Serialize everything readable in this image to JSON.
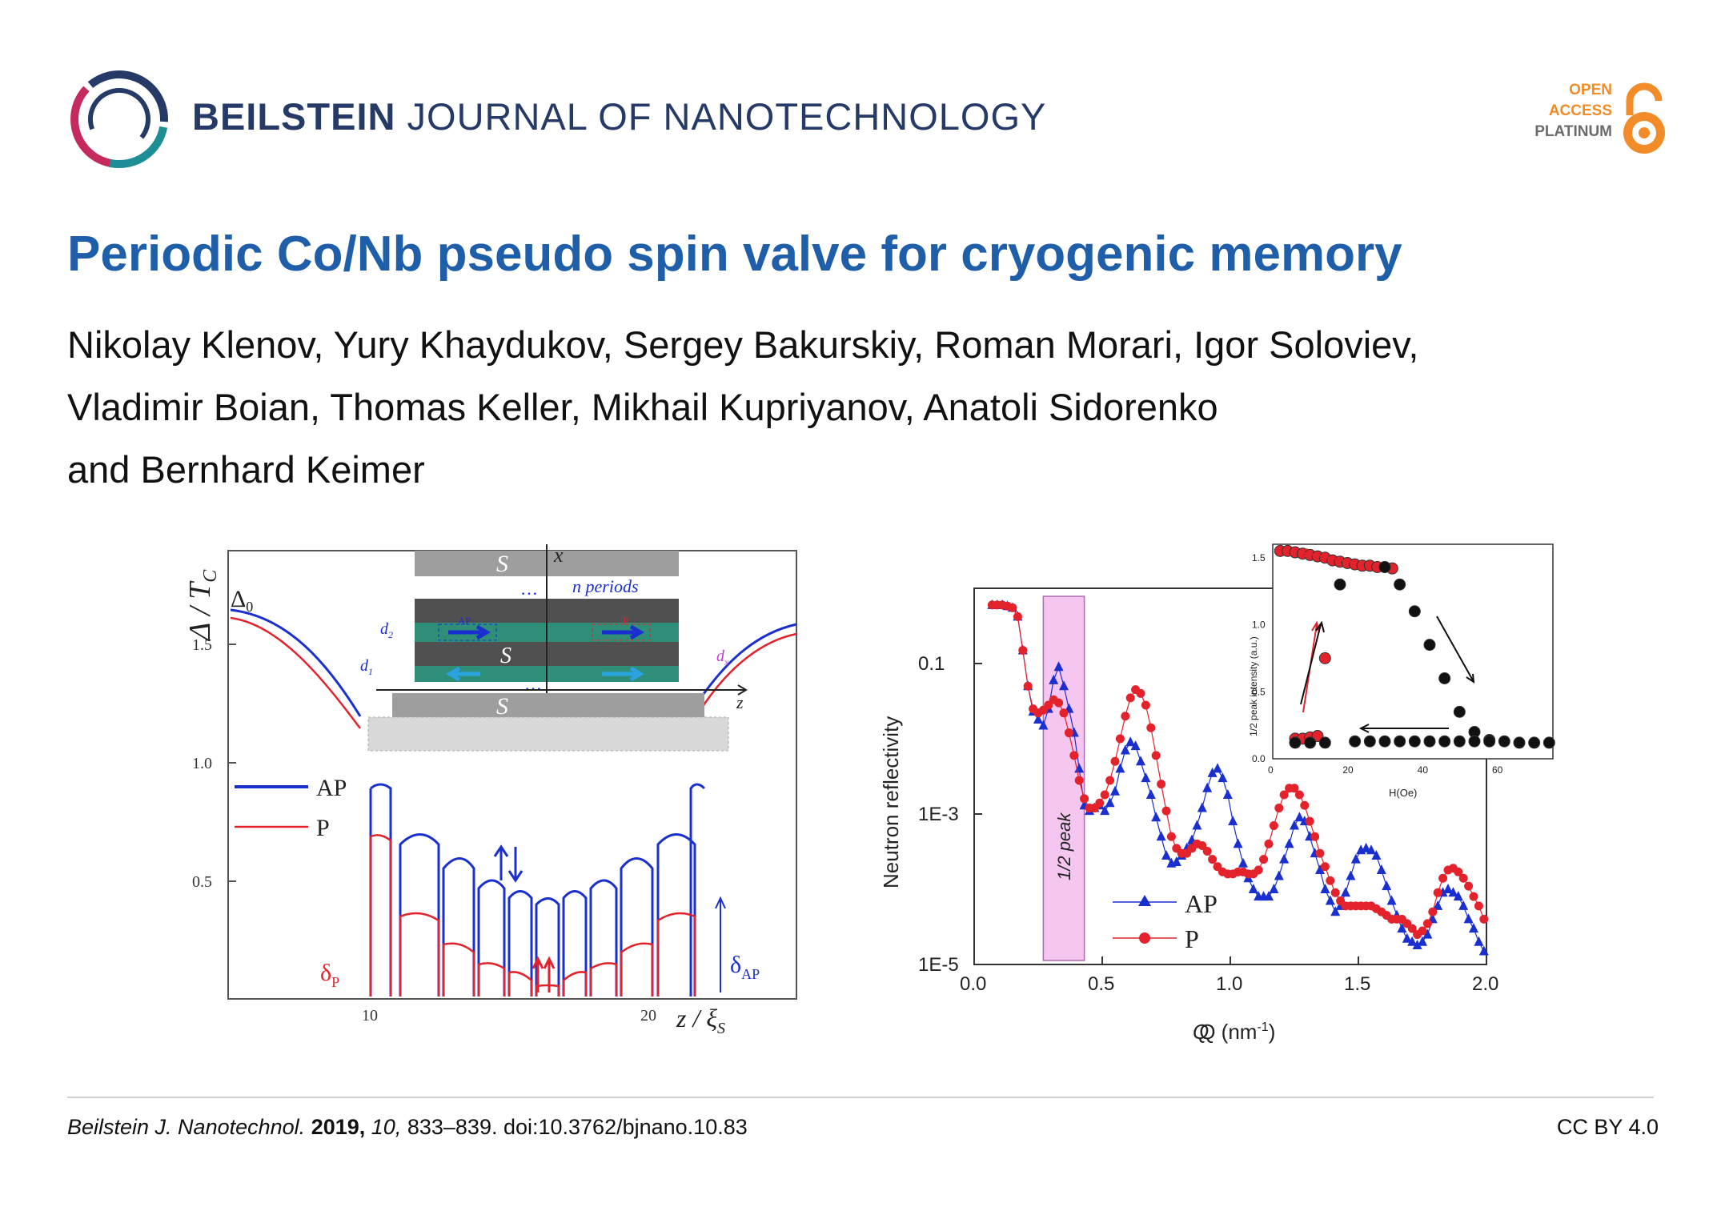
{
  "header": {
    "journal_bold": "BEILSTEIN",
    "journal_rest": "JOURNAL OF NANOTECHNOLOGY",
    "oa_line1": "OPEN",
    "oa_line2": "ACCESS",
    "oa_line3": "PLATINUM",
    "colors": {
      "journal": "#263a68",
      "title": "#1f5ea8",
      "oa_orange": "#f28c28"
    }
  },
  "article": {
    "title": "Periodic Co/Nb pseudo spin valve for cryogenic memory",
    "authors_line1": "Nikolay Klenov, Yury Khaydukov, Sergey Bakurskiy, Roman Morari, Igor Soloviev,",
    "authors_line2": "Vladimir Boian, Thomas Keller, Mikhail Kupriyanov, Anatoli Sidorenko",
    "authors_line3": "and Bernhard Keimer"
  },
  "left_figure": {
    "ylabel": "Δ / T",
    "ylabel_sub": "C",
    "delta0": "Δ",
    "delta0_sub": "0",
    "xlabel": "z / ξ",
    "xlabel_sub": "S",
    "xticks": [
      "10",
      "20"
    ],
    "yticks": [
      "0.5",
      "1.0",
      "1.5"
    ],
    "legend": [
      "AP",
      "P"
    ],
    "delta_p": "δ",
    "delta_p_sub": "P",
    "delta_ap": "δ",
    "delta_ap_sub": "AP",
    "inset": {
      "s_top": "S",
      "s_mid": "S",
      "s_bottom": "S",
      "n_periods": "n periods",
      "dots": "…",
      "ap_label": "AP",
      "p_label": "P",
      "axis_x": "x",
      "axis_z": "z",
      "d1": "d",
      "d1_sub": "1",
      "d2": "d",
      "d2_sub": "2",
      "dx": "d",
      "dx_sub": "x"
    },
    "colors": {
      "ap": "#1a2fd0",
      "p": "#e4222b"
    }
  },
  "chart_data": {
    "type": "scatter",
    "title": "",
    "xlabel": "Q (nm",
    "xlabel_sup": "-1",
    "xlabel_end": ")",
    "ylabel": "Neutron reflectivity",
    "xlim": [
      0.0,
      2.0
    ],
    "ylim_log10": [
      -5,
      0
    ],
    "xticks": [
      "0.0",
      "0.5",
      "1.0",
      "1.5",
      "2.0"
    ],
    "yticks": [
      "0.1",
      "1E-3",
      "1E-5"
    ],
    "yticks_values": [
      0.1,
      0.001,
      1e-05
    ],
    "band_label": "1/2 peak",
    "band_range": [
      0.27,
      0.43
    ],
    "series": [
      {
        "name": "AP",
        "marker": "triangle",
        "color": "#1a2fd0",
        "x": [
          0.07,
          0.09,
          0.11,
          0.13,
          0.15,
          0.17,
          0.19,
          0.21,
          0.23,
          0.25,
          0.27,
          0.29,
          0.31,
          0.33,
          0.35,
          0.37,
          0.39,
          0.41,
          0.43,
          0.45,
          0.47,
          0.49,
          0.51,
          0.53,
          0.55,
          0.57,
          0.59,
          0.61,
          0.63,
          0.65,
          0.67,
          0.69,
          0.71,
          0.73,
          0.75,
          0.77,
          0.79,
          0.81,
          0.83,
          0.85,
          0.87,
          0.89,
          0.91,
          0.93,
          0.95,
          0.97,
          0.99,
          1.01,
          1.03,
          1.05,
          1.07,
          1.09,
          1.11,
          1.13,
          1.15,
          1.17,
          1.19,
          1.21,
          1.23,
          1.25,
          1.27,
          1.29,
          1.31,
          1.33,
          1.35,
          1.37,
          1.39,
          1.41,
          1.43,
          1.45,
          1.47,
          1.49,
          1.51,
          1.53,
          1.55,
          1.57,
          1.59,
          1.61,
          1.63,
          1.65,
          1.67,
          1.69,
          1.71,
          1.73,
          1.75,
          1.77,
          1.79,
          1.81,
          1.83,
          1.85,
          1.87,
          1.89,
          1.91,
          1.93,
          1.95,
          1.97,
          1.99
        ],
        "y": [
          0.6,
          0.6,
          0.6,
          0.58,
          0.55,
          0.42,
          0.15,
          0.05,
          0.023,
          0.018,
          0.015,
          0.025,
          0.06,
          0.09,
          0.05,
          0.025,
          0.012,
          0.004,
          0.0013,
          0.0011,
          0.0012,
          0.0013,
          0.0011,
          0.0014,
          0.002,
          0.004,
          0.007,
          0.009,
          0.008,
          0.005,
          0.003,
          0.0018,
          0.0009,
          0.0005,
          0.00028,
          0.00022,
          0.00023,
          0.00028,
          0.00035,
          0.00045,
          0.0007,
          0.0012,
          0.0022,
          0.0035,
          0.004,
          0.003,
          0.0018,
          0.0008,
          0.0004,
          0.00022,
          0.00014,
          0.0001,
          8e-05,
          8e-05,
          8e-05,
          0.0001,
          0.00015,
          0.00025,
          0.0004,
          0.0007,
          0.0009,
          0.0008,
          0.0005,
          0.0003,
          0.00018,
          0.0001,
          7e-05,
          5e-05,
          6e-05,
          9e-05,
          0.00015,
          0.00025,
          0.00033,
          0.00035,
          0.00033,
          0.00028,
          0.00018,
          0.00011,
          7e-05,
          4.5e-05,
          3e-05,
          2.2e-05,
          2e-05,
          1.8e-05,
          2e-05,
          2.5e-05,
          4e-05,
          6e-05,
          9e-05,
          0.0001,
          9e-05,
          8e-05,
          6e-05,
          4e-05,
          3e-05,
          2e-05,
          1.5e-05
        ]
      },
      {
        "name": "P",
        "marker": "circle",
        "color": "#e4222b",
        "x": [
          0.07,
          0.09,
          0.11,
          0.13,
          0.15,
          0.17,
          0.19,
          0.21,
          0.23,
          0.25,
          0.27,
          0.29,
          0.31,
          0.33,
          0.35,
          0.37,
          0.39,
          0.41,
          0.43,
          0.45,
          0.47,
          0.49,
          0.51,
          0.53,
          0.55,
          0.57,
          0.59,
          0.61,
          0.63,
          0.65,
          0.67,
          0.69,
          0.71,
          0.73,
          0.75,
          0.77,
          0.79,
          0.81,
          0.83,
          0.85,
          0.87,
          0.89,
          0.91,
          0.93,
          0.95,
          0.97,
          0.99,
          1.01,
          1.03,
          1.05,
          1.07,
          1.09,
          1.11,
          1.13,
          1.15,
          1.17,
          1.19,
          1.21,
          1.23,
          1.25,
          1.27,
          1.29,
          1.31,
          1.33,
          1.35,
          1.37,
          1.39,
          1.41,
          1.43,
          1.45,
          1.47,
          1.49,
          1.51,
          1.53,
          1.55,
          1.57,
          1.59,
          1.61,
          1.63,
          1.65,
          1.67,
          1.69,
          1.71,
          1.73,
          1.75,
          1.77,
          1.79,
          1.81,
          1.83,
          1.85,
          1.87,
          1.89,
          1.91,
          1.93,
          1.95,
          1.97,
          1.99
        ],
        "y": [
          0.6,
          0.6,
          0.6,
          0.58,
          0.55,
          0.42,
          0.15,
          0.05,
          0.025,
          0.022,
          0.024,
          0.028,
          0.033,
          0.03,
          0.022,
          0.012,
          0.006,
          0.0028,
          0.0016,
          0.0012,
          0.0012,
          0.0014,
          0.0018,
          0.0028,
          0.005,
          0.01,
          0.02,
          0.035,
          0.045,
          0.04,
          0.028,
          0.014,
          0.006,
          0.0025,
          0.0011,
          0.0005,
          0.00035,
          0.0003,
          0.0003,
          0.00035,
          0.0004,
          0.00038,
          0.00032,
          0.00025,
          0.0002,
          0.00017,
          0.00016,
          0.00016,
          0.00017,
          0.00017,
          0.00016,
          0.00016,
          0.00018,
          0.00025,
          0.0004,
          0.0007,
          0.0012,
          0.0018,
          0.0022,
          0.0022,
          0.0018,
          0.0013,
          0.0008,
          0.0005,
          0.0003,
          0.0002,
          0.00013,
          9e-05,
          7e-05,
          6e-05,
          6e-05,
          6e-05,
          6e-05,
          6e-05,
          6e-05,
          5.5e-05,
          5e-05,
          4.5e-05,
          4e-05,
          4e-05,
          4e-05,
          3.5e-05,
          3e-05,
          2.5e-05,
          2.8e-05,
          3.5e-05,
          5e-05,
          9e-05,
          0.00014,
          0.00018,
          0.00019,
          0.00017,
          0.00014,
          0.00011,
          8e-05,
          6e-05,
          4e-05
        ]
      }
    ],
    "inset": {
      "ylabel": "1/2 peak intensity (a.u.)",
      "xlabel": "H(Oe)",
      "xticks": [
        "0",
        "20",
        "40",
        "60"
      ],
      "yticks": [
        "0.0",
        "0.5",
        "1.0",
        "1.5"
      ],
      "xlim": [
        0,
        75
      ],
      "ylim": [
        0,
        1.6
      ],
      "series": [
        {
          "name": "red",
          "color": "#e4222b",
          "x": [
            2,
            4,
            6,
            8,
            10,
            12,
            14,
            16,
            18,
            20,
            22,
            24,
            26,
            28,
            30,
            32,
            6,
            8,
            10,
            12,
            14
          ],
          "y": [
            1.55,
            1.55,
            1.54,
            1.53,
            1.52,
            1.51,
            1.5,
            1.48,
            1.47,
            1.46,
            1.45,
            1.44,
            1.44,
            1.43,
            1.43,
            1.42,
            0.15,
            0.15,
            0.16,
            0.17,
            0.75
          ]
        },
        {
          "name": "black",
          "color": "#111111",
          "x": [
            30,
            34,
            38,
            42,
            46,
            50,
            54,
            58,
            62,
            66,
            70,
            74,
            6,
            10,
            14,
            18,
            22,
            26,
            30,
            34,
            38,
            42,
            46,
            50,
            54,
            58
          ],
          "y": [
            1.43,
            1.3,
            1.1,
            0.85,
            0.6,
            0.35,
            0.2,
            0.14,
            0.13,
            0.12,
            0.12,
            0.12,
            0.12,
            0.12,
            0.12,
            1.3,
            0.13,
            0.13,
            0.13,
            0.13,
            0.13,
            0.13,
            0.13,
            0.13,
            0.13,
            0.13
          ]
        }
      ]
    },
    "legend": [
      "AP",
      "P"
    ]
  },
  "footer": {
    "journal": "Beilstein J. Nanotechnol.",
    "year": "2019,",
    "volume": "10,",
    "pages_doi": "833–839. doi:10.3762/bjnano.10.83",
    "license": "CC BY 4.0"
  }
}
